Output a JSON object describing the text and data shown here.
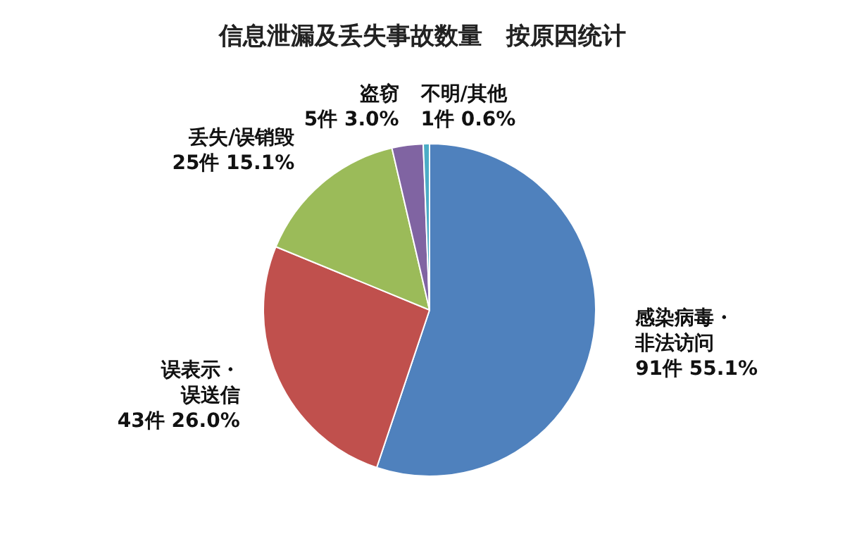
{
  "chart_data": {
    "type": "pie",
    "title": "信息泄漏及丢失事故数量　按原因统计",
    "categories": [
      "感染病毒・非法访问",
      "误表示・误送信",
      "丢失/误销毁",
      "盗窃",
      "不明/其他"
    ],
    "values": [
      91,
      43,
      25,
      5,
      1
    ],
    "value_labels": [
      "91件 55.1%",
      "43件 26.0%",
      "25件 15.1%",
      "5件 3.0%",
      "1件 0.6%"
    ],
    "colors": [
      "#4f81bd",
      "#c0504d",
      "#9bbb59",
      "#8064a2",
      "#4bacc6"
    ],
    "legend": false
  }
}
